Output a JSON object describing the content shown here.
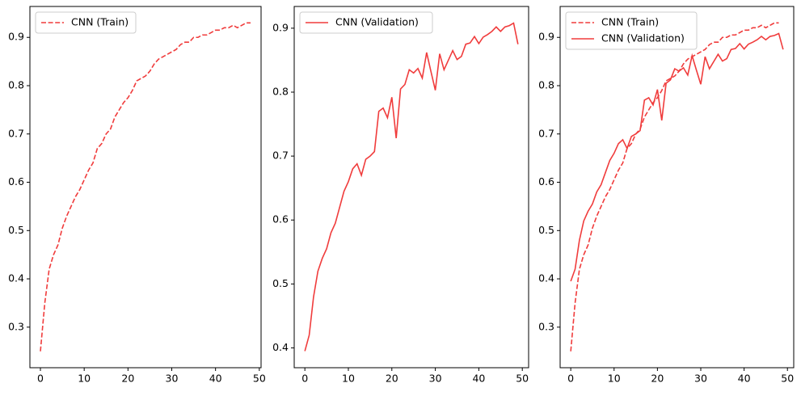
{
  "chart_data": [
    {
      "type": "line",
      "legend": "upper left",
      "xlim": [
        -2.4,
        50.4
      ],
      "xticks": [
        0,
        10,
        20,
        30,
        40,
        50
      ],
      "ylim": [
        0.216,
        0.964
      ],
      "yticks": [
        0.3,
        0.4,
        0.5,
        0.6,
        0.7,
        0.8,
        0.9
      ],
      "series": [
        {
          "name": "CNN (Train)",
          "color": "#f03c3c",
          "linestyle": "dashed",
          "x": [
            0,
            1,
            2,
            3,
            4,
            5,
            6,
            7,
            8,
            9,
            10,
            11,
            12,
            13,
            14,
            15,
            16,
            17,
            18,
            19,
            20,
            21,
            22,
            23,
            24,
            25,
            26,
            27,
            28,
            29,
            30,
            31,
            32,
            33,
            34,
            35,
            36,
            37,
            38,
            39,
            40,
            41,
            42,
            43,
            44,
            45,
            46,
            47,
            48
          ],
          "values": [
            0.25,
            0.35,
            0.42,
            0.45,
            0.47,
            0.505,
            0.53,
            0.55,
            0.57,
            0.585,
            0.605,
            0.625,
            0.64,
            0.67,
            0.68,
            0.7,
            0.71,
            0.735,
            0.75,
            0.765,
            0.775,
            0.79,
            0.81,
            0.815,
            0.82,
            0.83,
            0.845,
            0.855,
            0.86,
            0.865,
            0.87,
            0.875,
            0.885,
            0.89,
            0.89,
            0.9,
            0.9,
            0.905,
            0.905,
            0.91,
            0.915,
            0.915,
            0.92,
            0.92,
            0.925,
            0.92,
            0.925,
            0.93,
            0.93
          ]
        }
      ]
    },
    {
      "type": "line",
      "legend": "upper left",
      "xlim": [
        -2.45,
        51.45
      ],
      "xticks": [
        0,
        10,
        20,
        30,
        40,
        50
      ],
      "ylim": [
        0.369,
        0.934
      ],
      "yticks": [
        0.4,
        0.5,
        0.6,
        0.7,
        0.8,
        0.9
      ],
      "series": [
        {
          "name": "CNN (Validation)",
          "color": "#f03c3c",
          "linestyle": "solid",
          "x": [
            0,
            1,
            2,
            3,
            4,
            5,
            6,
            7,
            8,
            9,
            10,
            11,
            12,
            13,
            14,
            15,
            16,
            17,
            18,
            19,
            20,
            21,
            22,
            23,
            24,
            25,
            26,
            27,
            28,
            29,
            30,
            31,
            32,
            33,
            34,
            35,
            36,
            37,
            38,
            39,
            40,
            41,
            42,
            43,
            44,
            45,
            46,
            47,
            48,
            49
          ],
          "values": [
            0.395,
            0.42,
            0.48,
            0.52,
            0.54,
            0.555,
            0.58,
            0.595,
            0.62,
            0.645,
            0.66,
            0.68,
            0.688,
            0.67,
            0.695,
            0.7,
            0.707,
            0.77,
            0.775,
            0.76,
            0.792,
            0.728,
            0.805,
            0.812,
            0.835,
            0.83,
            0.837,
            0.822,
            0.862,
            0.832,
            0.803,
            0.86,
            0.835,
            0.85,
            0.865,
            0.851,
            0.856,
            0.875,
            0.877,
            0.887,
            0.876,
            0.886,
            0.89,
            0.895,
            0.902,
            0.895,
            0.902,
            0.904,
            0.908,
            0.875
          ]
        }
      ]
    },
    {
      "type": "line",
      "legend": "upper left",
      "xlim": [
        -2.45,
        51.45
      ],
      "xticks": [
        0,
        10,
        20,
        30,
        40,
        50
      ],
      "ylim": [
        0.216,
        0.964
      ],
      "yticks": [
        0.3,
        0.4,
        0.5,
        0.6,
        0.7,
        0.8,
        0.9
      ],
      "series": [
        {
          "name": "CNN (Train)",
          "color": "#f03c3c",
          "linestyle": "dashed",
          "x": [
            0,
            1,
            2,
            3,
            4,
            5,
            6,
            7,
            8,
            9,
            10,
            11,
            12,
            13,
            14,
            15,
            16,
            17,
            18,
            19,
            20,
            21,
            22,
            23,
            24,
            25,
            26,
            27,
            28,
            29,
            30,
            31,
            32,
            33,
            34,
            35,
            36,
            37,
            38,
            39,
            40,
            41,
            42,
            43,
            44,
            45,
            46,
            47,
            48
          ],
          "values": [
            0.25,
            0.35,
            0.42,
            0.45,
            0.47,
            0.505,
            0.53,
            0.55,
            0.57,
            0.585,
            0.605,
            0.625,
            0.64,
            0.67,
            0.68,
            0.7,
            0.71,
            0.735,
            0.75,
            0.765,
            0.775,
            0.79,
            0.81,
            0.815,
            0.82,
            0.83,
            0.845,
            0.855,
            0.86,
            0.865,
            0.87,
            0.875,
            0.885,
            0.89,
            0.89,
            0.9,
            0.9,
            0.905,
            0.905,
            0.91,
            0.915,
            0.915,
            0.92,
            0.92,
            0.925,
            0.92,
            0.925,
            0.93,
            0.93
          ]
        },
        {
          "name": "CNN (Validation)",
          "color": "#f03c3c",
          "linestyle": "solid",
          "x": [
            0,
            1,
            2,
            3,
            4,
            5,
            6,
            7,
            8,
            9,
            10,
            11,
            12,
            13,
            14,
            15,
            16,
            17,
            18,
            19,
            20,
            21,
            22,
            23,
            24,
            25,
            26,
            27,
            28,
            29,
            30,
            31,
            32,
            33,
            34,
            35,
            36,
            37,
            38,
            39,
            40,
            41,
            42,
            43,
            44,
            45,
            46,
            47,
            48,
            49
          ],
          "values": [
            0.395,
            0.42,
            0.48,
            0.52,
            0.54,
            0.555,
            0.58,
            0.595,
            0.62,
            0.645,
            0.66,
            0.68,
            0.688,
            0.67,
            0.695,
            0.7,
            0.707,
            0.77,
            0.775,
            0.76,
            0.792,
            0.728,
            0.805,
            0.812,
            0.835,
            0.83,
            0.837,
            0.822,
            0.862,
            0.832,
            0.803,
            0.86,
            0.835,
            0.85,
            0.865,
            0.851,
            0.856,
            0.875,
            0.877,
            0.887,
            0.876,
            0.886,
            0.89,
            0.895,
            0.902,
            0.895,
            0.902,
            0.904,
            0.908,
            0.875
          ]
        }
      ]
    }
  ]
}
